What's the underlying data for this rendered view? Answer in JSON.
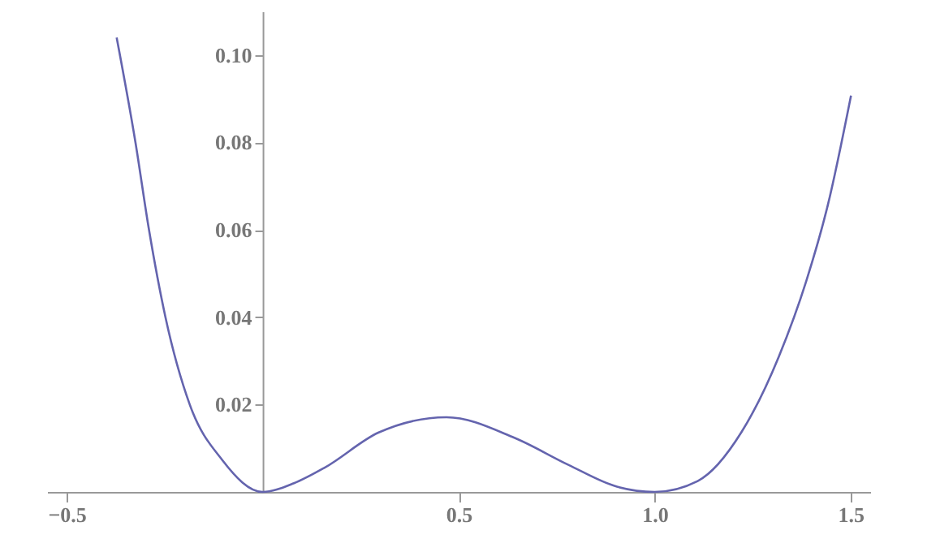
{
  "chart_data": {
    "type": "line",
    "x": [
      -0.3725,
      -0.3245,
      -0.29,
      -0.248,
      -0.186,
      -0.103,
      0,
      0.08,
      0.159,
      0.296,
      0.469,
      0.642,
      0.78,
      0.904,
      1.0,
      1.11,
      1.221,
      1.317,
      1.387,
      1.442,
      1.501
    ],
    "series": [
      {
        "color": "#6464ae",
        "values": [
          0.104,
          0.08,
          0.06,
          0.04,
          0.02,
          0.0073,
          0,
          0.002,
          0.0056,
          0.0136,
          0.0171,
          0.0124,
          0.0062,
          0.0012,
          0,
          0.0025,
          0.0136,
          0.031,
          0.0483,
          0.0657,
          0.0907
        ]
      }
    ],
    "xlim": [
      -0.55,
      1.55
    ],
    "ylim": [
      0,
      0.11
    ],
    "xticks": [
      {
        "value": -0.5,
        "label": "−0.5"
      },
      0.5,
      {
        "value": 1,
        "label": "1.0"
      },
      1.5
    ],
    "yticks": [
      0.02,
      0.04,
      0.06,
      0.08,
      {
        "value": 0.1,
        "label": "0.10"
      }
    ],
    "grid": false,
    "marker": "none",
    "line_style": "solid"
  }
}
